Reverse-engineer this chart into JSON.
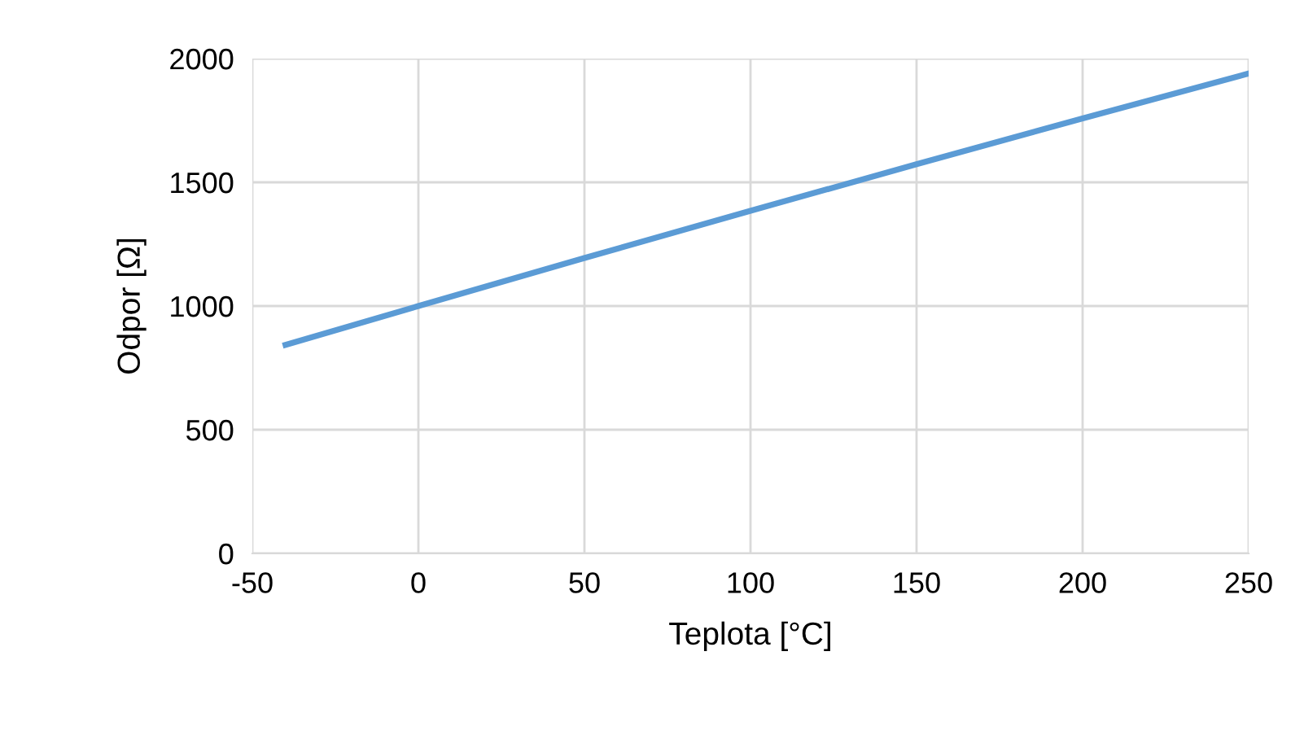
{
  "chart_data": {
    "type": "line",
    "xlabel": "Teplota [°C]",
    "ylabel": "Odpor [Ω]",
    "x": [
      -40,
      0,
      50,
      100,
      150,
      200,
      250
    ],
    "series": [
      {
        "color": "#5b9bd5",
        "values": [
          843,
          1000,
          1194,
          1385,
          1573,
          1758,
          1940
        ]
      }
    ],
    "xlim": [
      -50,
      250
    ],
    "xticks": [
      -50,
      0,
      50,
      100,
      150,
      200,
      250
    ],
    "ylim": [
      0,
      2000
    ],
    "yticks": [
      0,
      500,
      1000,
      1500,
      2000
    ],
    "grid": true,
    "line_style": "solid",
    "marker": "none"
  }
}
